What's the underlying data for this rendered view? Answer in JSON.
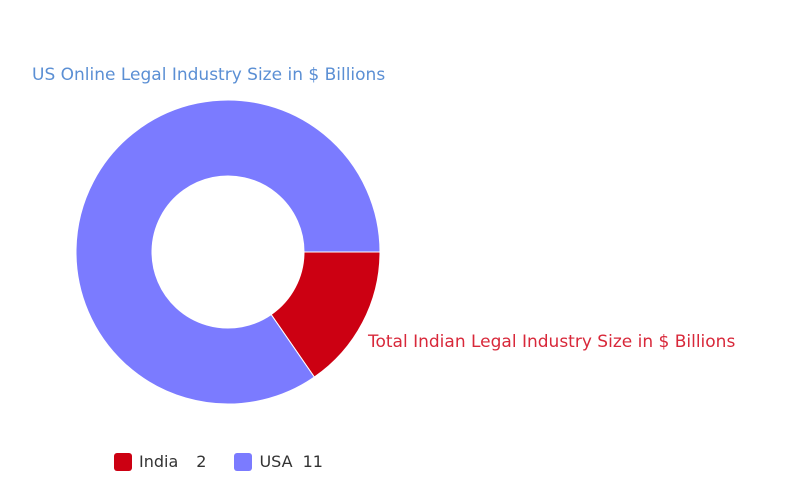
{
  "chart_data": {
    "type": "pie",
    "variant": "donut",
    "categories": [
      "India",
      "USA"
    ],
    "values": [
      2,
      11
    ],
    "colors": [
      "#cc0012",
      "#7b7bff"
    ],
    "data_labels": [
      {
        "category": "India",
        "text": "Total Indian Legal Industry Size in $ Billions",
        "color": "#d8283a"
      },
      {
        "category": "USA",
        "text": "US Online Legal Industry Size in $ Billions",
        "color": "#5b8fd4"
      }
    ],
    "legend": {
      "placement": "bottom-left",
      "entries": [
        {
          "label": "India",
          "value": "2"
        },
        {
          "label": "USA",
          "value": "11"
        }
      ]
    }
  }
}
